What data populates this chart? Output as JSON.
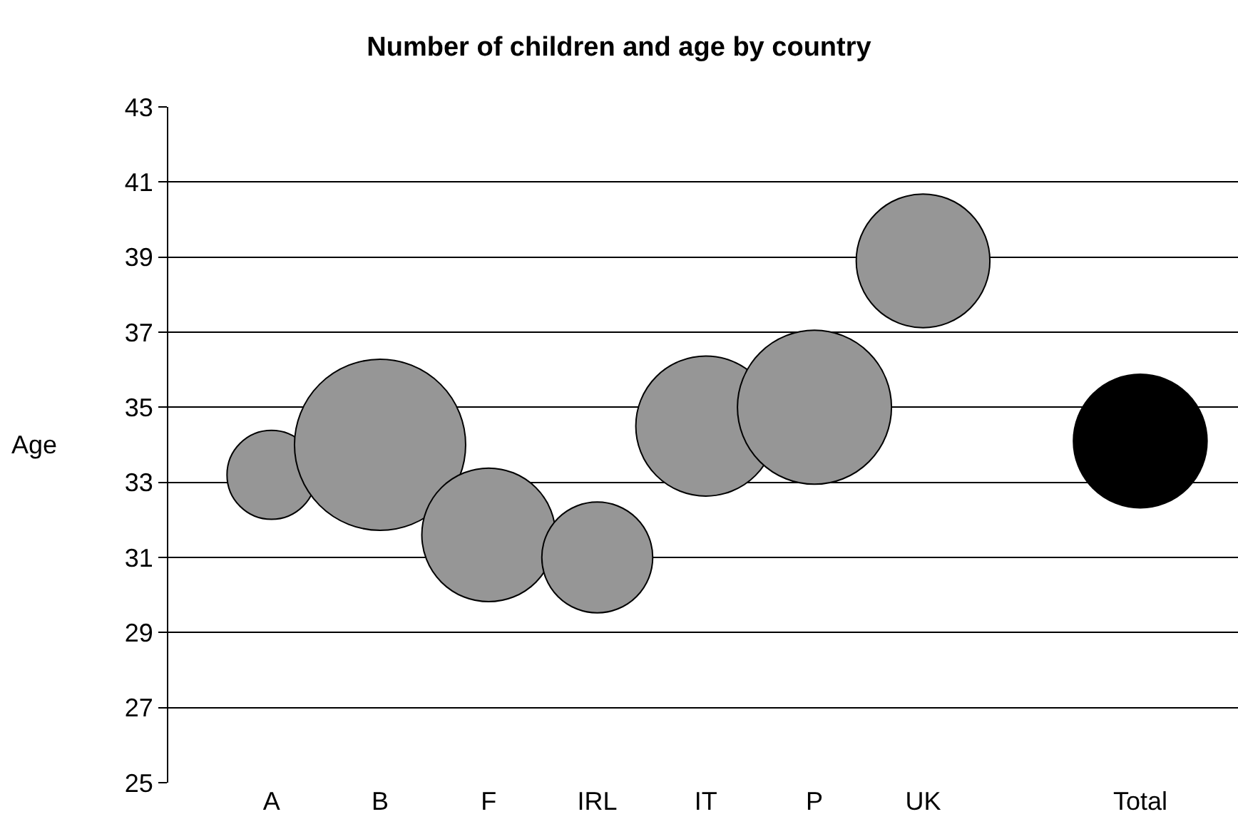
{
  "chart_data": {
    "type": "bubble",
    "title": "Number of children and age by country",
    "ylabel": "Age",
    "categories": [
      "A",
      "B",
      "F",
      "IRL",
      "IT",
      "P",
      "UK",
      null,
      "Total"
    ],
    "values": [
      33.2,
      34.0,
      31.6,
      31.0,
      34.5,
      35.0,
      38.9,
      null,
      34.1
    ],
    "sizes": [
      0.27,
      1,
      0.61,
      0.42,
      0.67,
      0.81,
      0.61,
      null,
      0.61
    ],
    "colors": [
      "#969696",
      "#969696",
      "#969696",
      "#969696",
      "#969696",
      "#969696",
      "#969696",
      "#969696",
      "#000000"
    ],
    "ylim": [
      25,
      43
    ],
    "yticks": [
      25,
      27,
      29,
      31,
      33,
      35,
      37,
      39,
      41,
      43
    ],
    "grid": "y"
  }
}
